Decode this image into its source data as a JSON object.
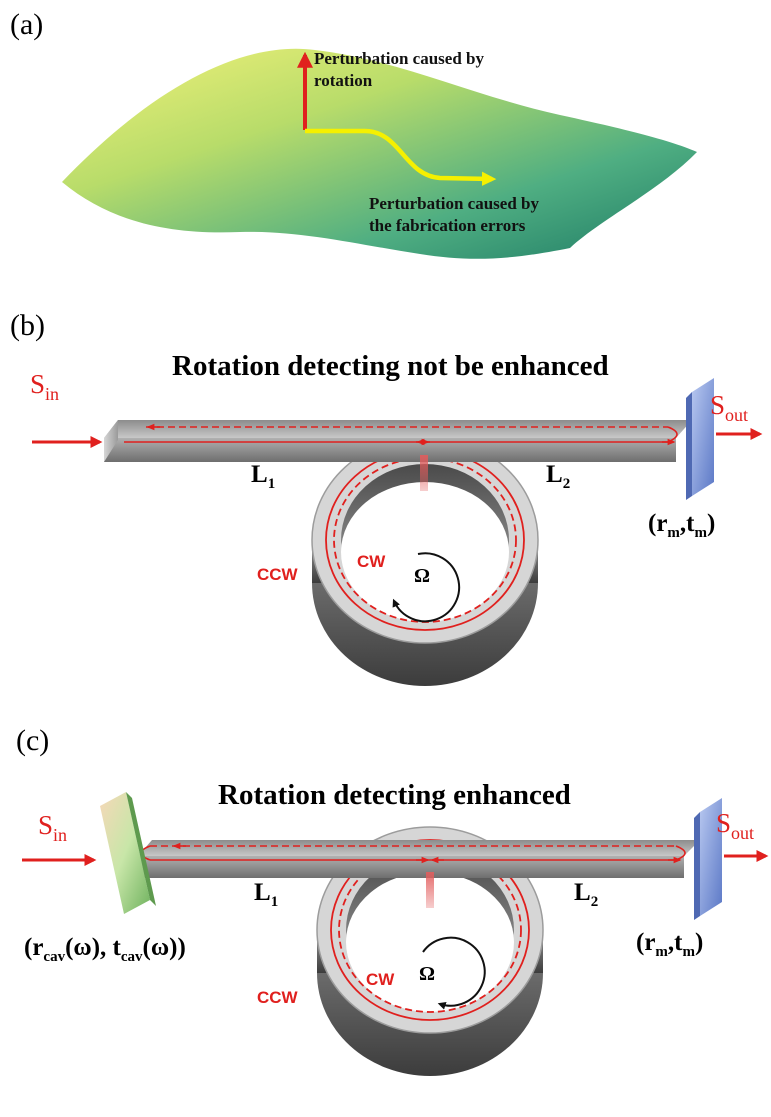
{
  "panel_a": {
    "label": "(a)",
    "annotation_rotation_line1": "Perturbation caused by",
    "annotation_rotation_line2": "rotation",
    "annotation_fab_line1": "Perturbation caused by",
    "annotation_fab_line2": "the fabrication errors"
  },
  "panel_b": {
    "label": "(b)",
    "title": "Rotation detecting not be enhanced",
    "s_in": "S",
    "s_in_sub": "in",
    "s_out": "S",
    "s_out_sub": "out",
    "l1": "L",
    "l1_sub": "1",
    "l2": "L",
    "l2_sub": "2",
    "mirror_left": "(r",
    "mirror_m1": "m",
    "mirror_mid": ",t",
    "mirror_m2": "m",
    "mirror_right": ")",
    "ccw": "CCW",
    "cw": "CW",
    "omega": "Ω"
  },
  "panel_c": {
    "label": "(c)",
    "title": "Rotation detecting enhanced",
    "s_in": "S",
    "s_in_sub": "in",
    "s_out": "S",
    "s_out_sub": "out",
    "l1": "L",
    "l1_sub": "1",
    "l2": "L",
    "l2_sub": "2",
    "cav_a": "(r",
    "cav_sub1": "cav",
    "cav_b": "(ω), t",
    "cav_sub2": "cav",
    "cav_c": "(ω))",
    "mirror_left": "(r",
    "mirror_m1": "m",
    "mirror_mid": ",t",
    "mirror_m2": "m",
    "mirror_right": ")",
    "ccw": "CCW",
    "cw": "CW",
    "omega": "Ω"
  },
  "colors": {
    "signal_red": "#e0201e",
    "perturbation_yellow": "#f5f000",
    "waveguide_gray": "#9a9a9a",
    "mirror_blue": "#7f9ad8",
    "mirror_green": "#9ed08a"
  }
}
